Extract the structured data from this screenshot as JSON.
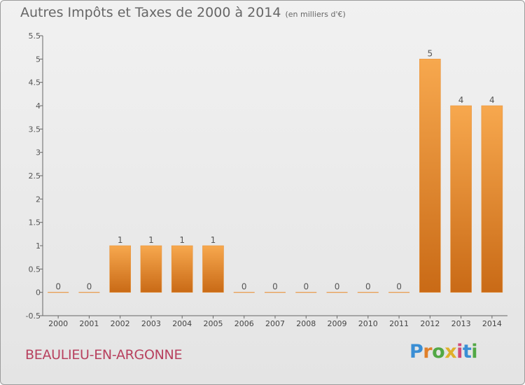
{
  "header": {
    "title": "Autres Impôts et Taxes de 2000 à 2014",
    "unit_note": "(en milliers d'€)"
  },
  "footer": {
    "place": "BEAULIEU-EN-ARGONNE",
    "brand_letters": [
      "P",
      "r",
      "o",
      "x",
      "i",
      "t",
      "i"
    ],
    "brand_colors": [
      "#3a8ed4",
      "#e0802a",
      "#52a845",
      "#e0b02a",
      "#d04a78",
      "#3a8ed4",
      "#52a845"
    ]
  },
  "chart_data": {
    "type": "bar",
    "categories": [
      "2000",
      "2001",
      "2002",
      "2003",
      "2004",
      "2005",
      "2006",
      "2007",
      "2008",
      "2009",
      "2010",
      "2011",
      "2012",
      "2013",
      "2014"
    ],
    "values": [
      0,
      0,
      1,
      1,
      1,
      1,
      0,
      0,
      0,
      0,
      0,
      0,
      5,
      4,
      4
    ],
    "value_labels": [
      "0",
      "0",
      "1",
      "1",
      "1",
      "1",
      "0",
      "0",
      "0",
      "0",
      "0",
      "0",
      "5",
      "4",
      "4"
    ],
    "title": "Autres Impôts et Taxes de 2000 à 2014",
    "xlabel": "",
    "ylabel": "",
    "ylim": [
      -0.5,
      5.5
    ],
    "yticks": [
      "-0.5",
      "0",
      "0.5",
      "1",
      "1.5",
      "2",
      "2.5",
      "3",
      "3.5",
      "4",
      "4.5",
      "5",
      "5.5"
    ],
    "grid": false,
    "colors": {
      "bar_light": "#f7a84e",
      "bar_dark": "#c96a16",
      "axis": "#666666"
    }
  }
}
